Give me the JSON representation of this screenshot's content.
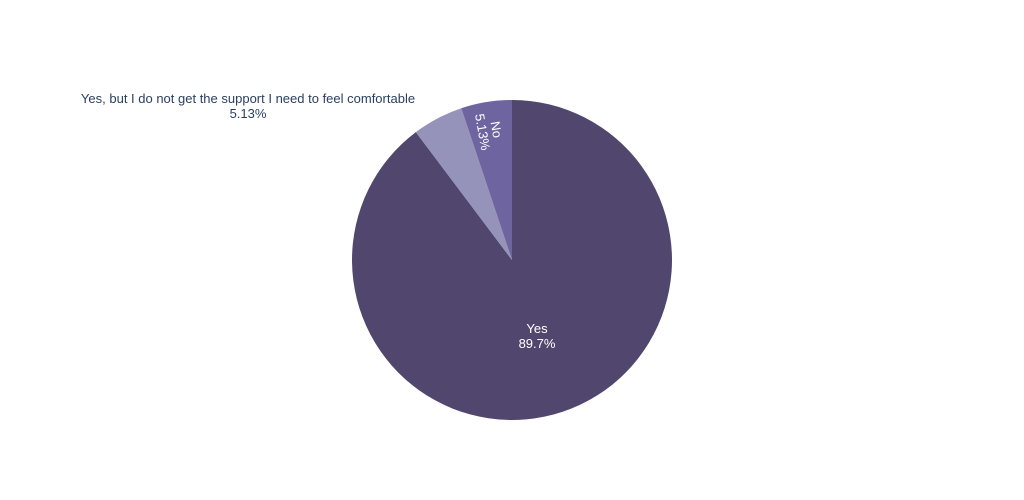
{
  "chart_data": {
    "type": "pie",
    "title": "",
    "direction": "clockwise",
    "start": "12 o'clock",
    "slices": [
      {
        "label": "Yes",
        "percent_label": "89.7%",
        "value": 89.74,
        "color": "#51476e"
      },
      {
        "label": "Yes, but I do not get the support I need to feel comfortable",
        "percent_label": "5.13%",
        "value": 5.13,
        "color": "#9593b9"
      },
      {
        "label": "No",
        "percent_label": "5.13%",
        "value": 5.13,
        "color": "#6d64a0"
      }
    ]
  }
}
